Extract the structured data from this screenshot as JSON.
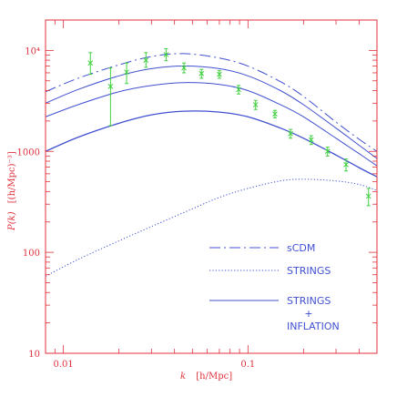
{
  "chart_data": {
    "type": "line",
    "xscale": "log",
    "yscale": "log",
    "xlim": [
      0.008,
      0.5
    ],
    "ylim": [
      10,
      20000
    ],
    "x_tick_labels": [
      {
        "value": 0.01,
        "label": "0.01"
      },
      {
        "value": 0.1,
        "label": "0.1"
      }
    ],
    "y_tick_labels": [
      {
        "value": 10,
        "label": "10"
      },
      {
        "value": 100,
        "label": "100"
      },
      {
        "value": 1000,
        "label": "1000"
      },
      {
        "value": 10000,
        "label": "10⁴"
      }
    ],
    "xlabel": {
      "symbol": "k",
      "units": "[h/Mpc]"
    },
    "ylabel": {
      "symbol": "P(k)",
      "units": "[(h/Mpc)⁻³]"
    },
    "colors": {
      "axes": "#e0303c",
      "curves": "#4050d0",
      "data": "#40d040"
    },
    "series": [
      {
        "name": "sCDM",
        "style": "dashdot",
        "x": [
          0.008,
          0.012,
          0.02,
          0.03,
          0.045,
          0.07,
          0.1,
          0.15,
          0.2,
          0.3,
          0.4,
          0.5
        ],
        "y": [
          3900,
          5300,
          7200,
          8700,
          9300,
          8400,
          7000,
          4900,
          3500,
          1950,
          1320,
          1000
        ]
      },
      {
        "name": "STRINGS",
        "style": "dotted",
        "x": [
          0.008,
          0.012,
          0.02,
          0.03,
          0.05,
          0.07,
          0.1,
          0.15,
          0.2,
          0.3,
          0.4,
          0.5
        ],
        "y": [
          58,
          85,
          130,
          180,
          270,
          350,
          430,
          510,
          530,
          510,
          470,
          410
        ]
      },
      {
        "style": "solid",
        "x": [
          0.008,
          0.012,
          0.02,
          0.03,
          0.045,
          0.07,
          0.1,
          0.15,
          0.2,
          0.3,
          0.4,
          0.5
        ],
        "y": [
          3000,
          4100,
          5600,
          6600,
          7000,
          6600,
          5600,
          4000,
          2900,
          1700,
          1150,
          850
        ]
      },
      {
        "style": "solid",
        "x": [
          0.008,
          0.012,
          0.02,
          0.03,
          0.045,
          0.07,
          0.1,
          0.15,
          0.2,
          0.3,
          0.4,
          0.5
        ],
        "y": [
          2200,
          2900,
          3900,
          4500,
          4800,
          4600,
          4000,
          2900,
          2200,
          1350,
          950,
          720
        ]
      },
      {
        "style": "solid",
        "x": [
          0.008,
          0.012,
          0.02,
          0.03,
          0.045,
          0.07,
          0.1,
          0.15,
          0.2,
          0.3,
          0.4,
          0.5
        ],
        "y": [
          1000,
          1380,
          1900,
          2300,
          2500,
          2450,
          2200,
          1700,
          1350,
          920,
          690,
          560
        ]
      }
    ],
    "data_points": [
      {
        "x": 0.014,
        "y": 7500,
        "ylow": 5800,
        "yhigh": 9500
      },
      {
        "x": 0.018,
        "y": 4400,
        "ylow": 1800,
        "yhigh": 6700
      },
      {
        "x": 0.022,
        "y": 6100,
        "ylow": 4700,
        "yhigh": 7500
      },
      {
        "x": 0.028,
        "y": 8000,
        "ylow": 6800,
        "yhigh": 9500
      },
      {
        "x": 0.036,
        "y": 9100,
        "ylow": 7900,
        "yhigh": 10400
      },
      {
        "x": 0.045,
        "y": 6700,
        "ylow": 6000,
        "yhigh": 7500
      },
      {
        "x": 0.056,
        "y": 5900,
        "ylow": 5300,
        "yhigh": 6500
      },
      {
        "x": 0.07,
        "y": 5800,
        "ylow": 5300,
        "yhigh": 6300
      },
      {
        "x": 0.089,
        "y": 4100,
        "ylow": 3700,
        "yhigh": 4500
      },
      {
        "x": 0.11,
        "y": 2900,
        "ylow": 2600,
        "yhigh": 3200
      },
      {
        "x": 0.14,
        "y": 2350,
        "ylow": 2150,
        "yhigh": 2550
      },
      {
        "x": 0.17,
        "y": 1500,
        "ylow": 1350,
        "yhigh": 1650
      },
      {
        "x": 0.22,
        "y": 1300,
        "ylow": 1170,
        "yhigh": 1430
      },
      {
        "x": 0.27,
        "y": 1000,
        "ylow": 900,
        "yhigh": 1100
      },
      {
        "x": 0.34,
        "y": 740,
        "ylow": 640,
        "yhigh": 840
      },
      {
        "x": 0.45,
        "y": 360,
        "ylow": 290,
        "yhigh": 430
      }
    ],
    "legend": {
      "position": "lower-right",
      "entries": [
        {
          "label_lines": [
            "sCDM"
          ],
          "style": "dashdot"
        },
        {
          "label_lines": [
            "STRINGS"
          ],
          "style": "dotted"
        },
        {
          "label_lines": [
            "STRINGS",
            "+",
            "INFLATION"
          ],
          "style": "solid"
        }
      ]
    }
  }
}
